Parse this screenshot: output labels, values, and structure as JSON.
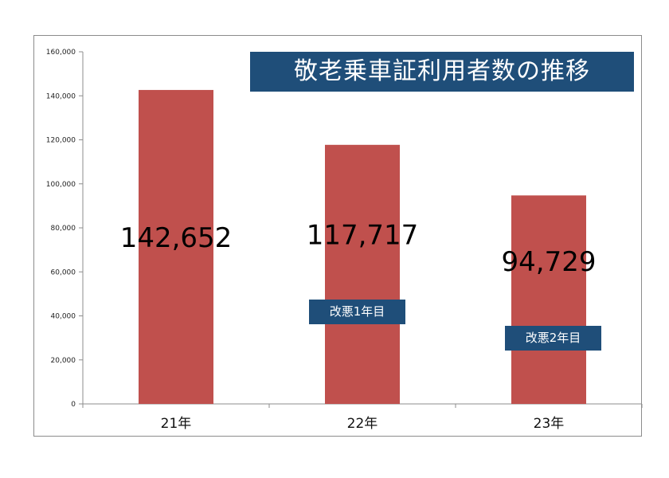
{
  "chart_data": {
    "type": "bar",
    "title": "敬老乗車証利用者数の推移",
    "categories": [
      "21年",
      "22年",
      "23年"
    ],
    "values": [
      142652,
      117717,
      94729
    ],
    "data_labels": [
      "142,652",
      "117,717",
      "94,729"
    ],
    "ylim": [
      0,
      160000
    ],
    "yticks": [
      0,
      20000,
      40000,
      60000,
      80000,
      100000,
      120000,
      140000,
      160000
    ],
    "ytick_labels": [
      "0",
      "20,000",
      "40,000",
      "60,000",
      "80,000",
      "100,000",
      "120,000",
      "140,000",
      "160,000"
    ],
    "grid": false,
    "legend": "none",
    "annotations": [
      {
        "category": "22年",
        "text": "改悪1年目"
      },
      {
        "category": "23年",
        "text": "改悪2年目"
      }
    ],
    "bar_color": "#c0504d",
    "annotation_color": "#1f4e79"
  }
}
